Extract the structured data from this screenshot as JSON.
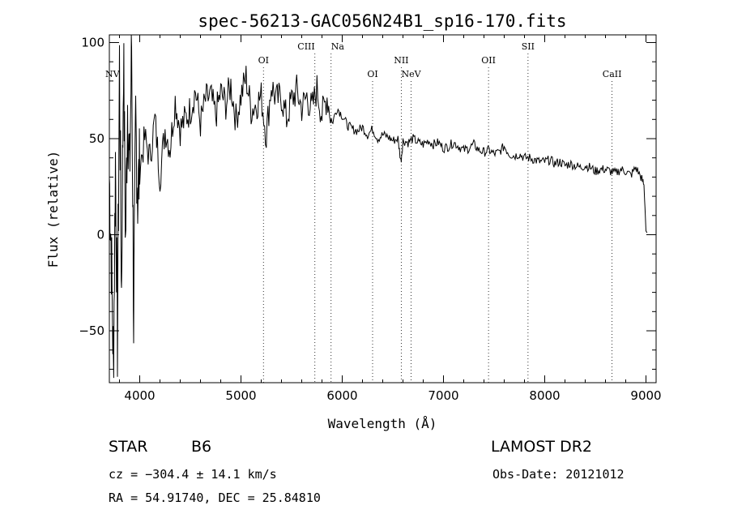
{
  "chart_data": {
    "type": "line",
    "title": "spec-56213-GAC056N24B1_sp16-170.fits",
    "xlabel": "Wavelength (Å)",
    "ylabel": "Flux (relative)",
    "xlim": [
      3700,
      9100
    ],
    "ylim": [
      -77,
      104
    ],
    "xticks": [
      4000,
      5000,
      6000,
      7000,
      8000,
      9000
    ],
    "yticks": [
      -50,
      0,
      50,
      100
    ],
    "grid": false,
    "series": [
      {
        "x": [
          3700,
          3720,
          3740,
          3760,
          3780,
          3800,
          3820,
          3840,
          3860,
          3880,
          3900,
          3920,
          3940,
          3960,
          3980,
          4000,
          4050,
          4100,
          4150,
          4200,
          4250,
          4300,
          4350,
          4400,
          4450,
          4500,
          4550,
          4600,
          4650,
          4700,
          4750,
          4800,
          4850,
          4900,
          4950,
          5000,
          5050,
          5100,
          5150,
          5200,
          5250,
          5300,
          5350,
          5400,
          5450,
          5500,
          5550,
          5600,
          5650,
          5700,
          5750,
          5800,
          5850,
          5900,
          5950,
          6000,
          6050,
          6100,
          6150,
          6200,
          6250,
          6300,
          6350,
          6400,
          6450,
          6500,
          6550,
          6580,
          6600,
          6650,
          6700,
          6750,
          6800,
          6850,
          6900,
          6950,
          7000,
          7050,
          7100,
          7150,
          7200,
          7250,
          7300,
          7350,
          7400,
          7450,
          7500,
          7550,
          7600,
          7650,
          7700,
          7750,
          7800,
          7850,
          7900,
          7950,
          8000,
          8050,
          8100,
          8150,
          8200,
          8250,
          8300,
          8350,
          8400,
          8450,
          8500,
          8550,
          8600,
          8650,
          8700,
          8750,
          8800,
          8850,
          8900,
          8950,
          8980,
          9000,
          9010
        ],
        "y": [
          30,
          -10,
          -72,
          40,
          -55,
          90,
          -30,
          95,
          -5,
          70,
          30,
          100,
          -45,
          60,
          20,
          35,
          50,
          40,
          60,
          30,
          55,
          45,
          70,
          55,
          60,
          65,
          75,
          58,
          70,
          72,
          62,
          74,
          68,
          78,
          60,
          72,
          82,
          65,
          68,
          72,
          52,
          78,
          70,
          72,
          60,
          70,
          75,
          66,
          72,
          65,
          76,
          62,
          72,
          58,
          66,
          62,
          57,
          55,
          54,
          56,
          52,
          55,
          50,
          52,
          51,
          49,
          50,
          38,
          49,
          48,
          50,
          48,
          47,
          49,
          47,
          48,
          45,
          46,
          48,
          46,
          44,
          45,
          47,
          44,
          43,
          44,
          42,
          43,
          46,
          42,
          41,
          42,
          40,
          40,
          39,
          38,
          38,
          39,
          37,
          38,
          36,
          37,
          36,
          35,
          36,
          35,
          33,
          34,
          34,
          33,
          32,
          34,
          33,
          31,
          35,
          30,
          26,
          2,
          1
        ]
      }
    ],
    "annotations": [
      {
        "label": "NV",
        "x": 3730
      },
      {
        "label": "OI",
        "x": 5222
      },
      {
        "label": "CIII",
        "x": 5730
      },
      {
        "label": "Na",
        "x": 5890
      },
      {
        "label": "OI",
        "x": 6300
      },
      {
        "label": "NII",
        "x": 6583
      },
      {
        "label": "NeV",
        "x": 6680
      },
      {
        "label": "OII",
        "x": 7445
      },
      {
        "label": "SII",
        "x": 7835
      },
      {
        "label": "CaII",
        "x": 8665
      }
    ]
  },
  "info": {
    "class": "STAR",
    "subclass": "B6",
    "survey": "LAMOST DR2",
    "cz": "cz = −304.4 ± 14.1 km/s",
    "obs_date": "Obs-Date: 20121012",
    "coords": "RA =  54.91740, DEC =  25.84810"
  }
}
